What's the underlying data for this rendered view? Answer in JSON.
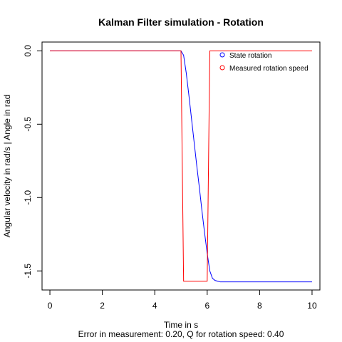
{
  "chart_data": {
    "type": "line",
    "title": "Kalman Filter simulation - Rotation",
    "xlabel": "Time in s",
    "ylabel": "Angular velocity in rad/s | Angle in rad",
    "subtitle": "Error in measurement: 0.20, Q for rotation speed: 0.40",
    "xlim": [
      -0.3,
      10.3
    ],
    "ylim": [
      -1.63,
      0.06
    ],
    "x_ticks": [
      0,
      2,
      4,
      6,
      8,
      10
    ],
    "x_tick_labels": [
      "0",
      "2",
      "4",
      "6",
      "8",
      "10"
    ],
    "y_ticks": [
      0.0,
      -0.5,
      -1.0,
      -1.5
    ],
    "y_tick_labels": [
      "0.0",
      "-0.5",
      "-1.0",
      "-1.5"
    ],
    "grid": false,
    "legend_position": "top-right",
    "series": [
      {
        "name": "State rotation",
        "color": "#0000ff",
        "x": [
          0,
          5.0,
          5.1,
          5.2,
          5.3,
          5.4,
          5.5,
          5.6,
          5.7,
          5.8,
          5.9,
          6.0,
          6.1,
          6.2,
          6.3,
          6.4,
          6.5,
          6.7,
          10
        ],
        "y": [
          0,
          0,
          -0.03,
          -0.15,
          -0.3,
          -0.46,
          -0.62,
          -0.78,
          -0.93,
          -1.09,
          -1.24,
          -1.38,
          -1.5,
          -1.55,
          -1.565,
          -1.57,
          -1.575,
          -1.575,
          -1.575
        ]
      },
      {
        "name": "Measured rotation speed",
        "color": "#ff0000",
        "x": [
          0,
          5.0,
          5.1,
          6.0,
          6.1,
          10
        ],
        "y": [
          0,
          0,
          -1.57,
          -1.57,
          0,
          0
        ]
      }
    ]
  }
}
